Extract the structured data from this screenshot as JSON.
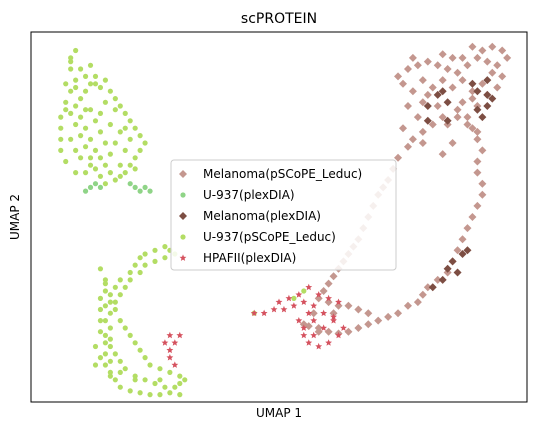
{
  "chart_data": {
    "type": "scatter",
    "title": "scPROTEIN",
    "xlabel": "UMAP 1",
    "ylabel": "UMAP 2",
    "xlim": [
      0,
      100
    ],
    "ylim": [
      0,
      100
    ],
    "grid": false,
    "x_ticks": [],
    "y_ticks": [],
    "legend_position": "center",
    "series": [
      {
        "name": "Melanoma(pSCoPE_Leduc)",
        "marker": "diamond",
        "color": "#c4978f",
        "points": [
          [
            74,
            88
          ],
          [
            76,
            90
          ],
          [
            78,
            91
          ],
          [
            80,
            92
          ],
          [
            82,
            91
          ],
          [
            84,
            90
          ],
          [
            86,
            89
          ],
          [
            88,
            91
          ],
          [
            90,
            93
          ],
          [
            92,
            92
          ],
          [
            94,
            91
          ],
          [
            95,
            88
          ],
          [
            94,
            85
          ],
          [
            92,
            83
          ],
          [
            90,
            80
          ],
          [
            88,
            77
          ],
          [
            89,
            74
          ],
          [
            90,
            71
          ],
          [
            91,
            68
          ],
          [
            90,
            65
          ],
          [
            90,
            62
          ],
          [
            91,
            59
          ],
          [
            91,
            56
          ],
          [
            90,
            53
          ],
          [
            89,
            50
          ],
          [
            88,
            47
          ],
          [
            87,
            44
          ],
          [
            86,
            41
          ],
          [
            85,
            38
          ],
          [
            84,
            35
          ],
          [
            82,
            33
          ],
          [
            80,
            31
          ],
          [
            79,
            29
          ],
          [
            78,
            27
          ],
          [
            76,
            26
          ],
          [
            74,
            24
          ],
          [
            72,
            23
          ],
          [
            70,
            22
          ],
          [
            68,
            21
          ],
          [
            66,
            20
          ],
          [
            64,
            19
          ],
          [
            62,
            18.5
          ],
          [
            60,
            19
          ],
          [
            58,
            20
          ],
          [
            56,
            20.5
          ],
          [
            55,
            21
          ],
          [
            58,
            19
          ],
          [
            61,
            24
          ],
          [
            57,
            24
          ],
          [
            77,
            93
          ],
          [
            79,
            87
          ],
          [
            81,
            85
          ],
          [
            83,
            87
          ],
          [
            85,
            85
          ],
          [
            87,
            87
          ],
          [
            89,
            84
          ],
          [
            91,
            86
          ],
          [
            93,
            89
          ],
          [
            80,
            83
          ],
          [
            82,
            80
          ],
          [
            83,
            77
          ],
          [
            81,
            75
          ],
          [
            79,
            73
          ],
          [
            77,
            71
          ],
          [
            76,
            69
          ],
          [
            74,
            66
          ],
          [
            73,
            63
          ],
          [
            72,
            60
          ],
          [
            71,
            58
          ],
          [
            70,
            56
          ],
          [
            69,
            53
          ],
          [
            68,
            50
          ],
          [
            67,
            47
          ],
          [
            66,
            44
          ],
          [
            65,
            42
          ],
          [
            64,
            40
          ],
          [
            63,
            38
          ],
          [
            62,
            36
          ],
          [
            61,
            34
          ],
          [
            60,
            32
          ],
          [
            59,
            30
          ],
          [
            58,
            28
          ],
          [
            60,
            27
          ],
          [
            62,
            26
          ],
          [
            64,
            26
          ],
          [
            66,
            25
          ],
          [
            68,
            24
          ],
          [
            96,
            93
          ],
          [
            95,
            95
          ],
          [
            93,
            96
          ],
          [
            91,
            95
          ],
          [
            89,
            96
          ],
          [
            87,
            93
          ],
          [
            85,
            93
          ],
          [
            83,
            94
          ],
          [
            75,
            86
          ],
          [
            77,
            84
          ],
          [
            79,
            81
          ],
          [
            89,
            82
          ],
          [
            87,
            81
          ],
          [
            86,
            79
          ],
          [
            88,
            75
          ],
          [
            90,
            73
          ],
          [
            86,
            77
          ],
          [
            84,
            75
          ],
          [
            85,
            70
          ],
          [
            83,
            67
          ],
          [
            79,
            70
          ],
          [
            75,
            74
          ],
          [
            76,
            80
          ],
          [
            78,
            77
          ]
        ]
      },
      {
        "name": "U-937(plexDIA)",
        "marker": "circle",
        "color": "#8fd487",
        "points": [
          [
            11,
            57
          ],
          [
            12,
            58
          ],
          [
            13,
            59
          ],
          [
            14,
            58
          ],
          [
            20,
            59
          ],
          [
            21,
            58
          ],
          [
            22,
            57
          ],
          [
            23,
            58
          ],
          [
            24,
            57
          ]
        ]
      },
      {
        "name": "Melanoma(plexDIA)",
        "marker": "diamond",
        "color": "#7d4e43",
        "points": [
          [
            82,
            83
          ],
          [
            84,
            81
          ],
          [
            80,
            80
          ],
          [
            90,
            84
          ],
          [
            92,
            83
          ],
          [
            93,
            82
          ],
          [
            92,
            80
          ],
          [
            90,
            79
          ],
          [
            91,
            77
          ],
          [
            84,
            76
          ],
          [
            80,
            76
          ],
          [
            83,
            84
          ],
          [
            89,
            86
          ],
          [
            92,
            87
          ],
          [
            88,
            41
          ],
          [
            87,
            40
          ],
          [
            85,
            38
          ],
          [
            84,
            36
          ],
          [
            86,
            35
          ],
          [
            83,
            33
          ],
          [
            81,
            31
          ]
        ]
      },
      {
        "name": "U-937(pSCoPE_Leduc)",
        "marker": "circle",
        "color": "#b3dd64",
        "points": [
          [
            8,
            93
          ],
          [
            9,
            95
          ],
          [
            8,
            90
          ],
          [
            9,
            87
          ],
          [
            8,
            84
          ],
          [
            7,
            81
          ],
          [
            8,
            78
          ],
          [
            9,
            75
          ],
          [
            10,
            72
          ],
          [
            11,
            69
          ],
          [
            12,
            66
          ],
          [
            13,
            63
          ],
          [
            11,
            62
          ],
          [
            9,
            62
          ],
          [
            7,
            65
          ],
          [
            6,
            68
          ],
          [
            6,
            71
          ],
          [
            6,
            74
          ],
          [
            6,
            77
          ],
          [
            7,
            79
          ],
          [
            9,
            80
          ],
          [
            10,
            82
          ],
          [
            11,
            84
          ],
          [
            12,
            86
          ],
          [
            13,
            88
          ],
          [
            14,
            85
          ],
          [
            15,
            87
          ],
          [
            16,
            84
          ],
          [
            17,
            82
          ],
          [
            18,
            80
          ],
          [
            19,
            78
          ],
          [
            20,
            76
          ],
          [
            21,
            74
          ],
          [
            22,
            72
          ],
          [
            23,
            70
          ],
          [
            22,
            68
          ],
          [
            21,
            66
          ],
          [
            20,
            64
          ],
          [
            19,
            62
          ],
          [
            18,
            61
          ],
          [
            17,
            60
          ],
          [
            16,
            62
          ],
          [
            15,
            64
          ],
          [
            14,
            66
          ],
          [
            13,
            68
          ],
          [
            12,
            71
          ],
          [
            11,
            74
          ],
          [
            10,
            77
          ],
          [
            12,
            79
          ],
          [
            14,
            78
          ],
          [
            16,
            75
          ],
          [
            18,
            73
          ],
          [
            17,
            70
          ],
          [
            15,
            70
          ],
          [
            14,
            73
          ],
          [
            13,
            76
          ],
          [
            16,
            67
          ],
          [
            19,
            68
          ],
          [
            20,
            71
          ],
          [
            8,
            92
          ],
          [
            10,
            90
          ],
          [
            11,
            88
          ],
          [
            12,
            91
          ],
          [
            13,
            86
          ],
          [
            7,
            86
          ],
          [
            9,
            85
          ],
          [
            11,
            79
          ],
          [
            15,
            81
          ],
          [
            17,
            79
          ],
          [
            19,
            74
          ],
          [
            14,
            61
          ],
          [
            12,
            64
          ],
          [
            9,
            68
          ],
          [
            8,
            71
          ],
          [
            10,
            66
          ],
          [
            15,
            59
          ],
          [
            18,
            64
          ],
          [
            21,
            63
          ],
          [
            14,
            36
          ],
          [
            15,
            33
          ],
          [
            15,
            30
          ],
          [
            14,
            28
          ],
          [
            14,
            25
          ],
          [
            14,
            22
          ],
          [
            14,
            19
          ],
          [
            15,
            16
          ],
          [
            15,
            13
          ],
          [
            15,
            10
          ],
          [
            16,
            7
          ],
          [
            16,
            8
          ],
          [
            17,
            6
          ],
          [
            18,
            4
          ],
          [
            20,
            3
          ],
          [
            22,
            2.5
          ],
          [
            24,
            2
          ],
          [
            26,
            2
          ],
          [
            28,
            2.5
          ],
          [
            30,
            2
          ],
          [
            29,
            4
          ],
          [
            27,
            4
          ],
          [
            25,
            5
          ],
          [
            23,
            6
          ],
          [
            21,
            7
          ],
          [
            19,
            9
          ],
          [
            18,
            11
          ],
          [
            17,
            13
          ],
          [
            16,
            15
          ],
          [
            16,
            17
          ],
          [
            16,
            20
          ],
          [
            15,
            22
          ],
          [
            16,
            24
          ],
          [
            16,
            27
          ],
          [
            16,
            29
          ],
          [
            17,
            31
          ],
          [
            18,
            33
          ],
          [
            20,
            35
          ],
          [
            21,
            37
          ],
          [
            22,
            39
          ],
          [
            23,
            40
          ],
          [
            25,
            41
          ],
          [
            27,
            42
          ],
          [
            28,
            41
          ],
          [
            29,
            40
          ],
          [
            27,
            39
          ],
          [
            25,
            38
          ],
          [
            23,
            37
          ],
          [
            22,
            35
          ],
          [
            20,
            33
          ],
          [
            19,
            31
          ],
          [
            18,
            29
          ],
          [
            17,
            27
          ],
          [
            17,
            25
          ],
          [
            18,
            22
          ],
          [
            19,
            20
          ],
          [
            20,
            18
          ],
          [
            21,
            16
          ],
          [
            22,
            14
          ],
          [
            23,
            12
          ],
          [
            24,
            10
          ],
          [
            26,
            9
          ],
          [
            28,
            8
          ],
          [
            30,
            7
          ],
          [
            31,
            6
          ],
          [
            30,
            5
          ],
          [
            18,
            8
          ],
          [
            16,
            11
          ],
          [
            13,
            15
          ],
          [
            15,
            18
          ],
          [
            15,
            26
          ],
          [
            15,
            32
          ],
          [
            14,
            12
          ],
          [
            13,
            10
          ],
          [
            21,
            6
          ],
          [
            26,
            6
          ],
          [
            53,
            28
          ],
          [
            55,
            30
          ],
          [
            45,
            24
          ]
        ]
      },
      {
        "name": "HPAFII(plexDIA)",
        "marker": "star",
        "color": "#d5525f",
        "points": [
          [
            45,
            24
          ],
          [
            47,
            24
          ],
          [
            49,
            25
          ],
          [
            51,
            25
          ],
          [
            53,
            26
          ],
          [
            55,
            27
          ],
          [
            57,
            26
          ],
          [
            59,
            24
          ],
          [
            61,
            22
          ],
          [
            63,
            20
          ],
          [
            62,
            18
          ],
          [
            60,
            16
          ],
          [
            58,
            15
          ],
          [
            56,
            16
          ],
          [
            55,
            18
          ],
          [
            55,
            20
          ],
          [
            54,
            22
          ],
          [
            57,
            22
          ],
          [
            52,
            28
          ],
          [
            50,
            27
          ],
          [
            54,
            29
          ],
          [
            56,
            31
          ],
          [
            58,
            29
          ],
          [
            60,
            28
          ],
          [
            62,
            27
          ],
          [
            61,
            23
          ],
          [
            59,
            20
          ],
          [
            57,
            18
          ],
          [
            56,
            24
          ],
          [
            29,
            10
          ],
          [
            28,
            12
          ],
          [
            28,
            14
          ],
          [
            27,
            16
          ],
          [
            29,
            16
          ],
          [
            28,
            18
          ],
          [
            30,
            18
          ]
        ]
      }
    ]
  }
}
